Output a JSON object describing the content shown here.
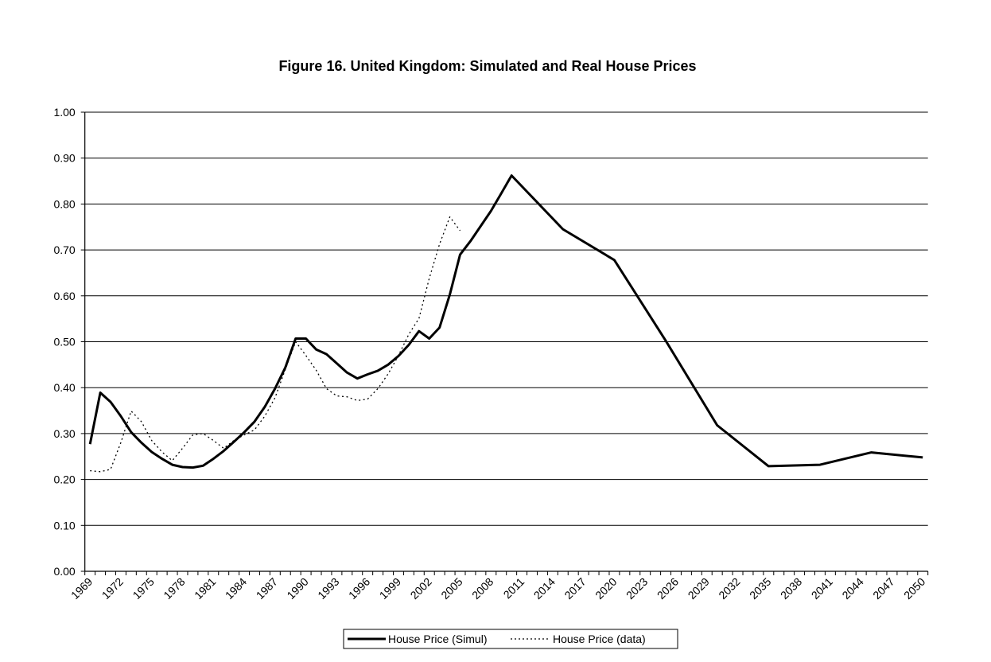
{
  "chart_data": {
    "type": "line",
    "title": "Figure 16.  United Kingdom:  Simulated and Real House Prices",
    "xlabel": "",
    "ylabel": "",
    "ylim": [
      0,
      1.0
    ],
    "yticks": [
      "0.00",
      "0.10",
      "0.20",
      "0.30",
      "0.40",
      "0.50",
      "0.60",
      "0.70",
      "0.80",
      "0.90",
      "1.00"
    ],
    "x_range": [
      1969,
      2050
    ],
    "xtick_labels": [
      "1969",
      "1972",
      "1975",
      "1978",
      "1981",
      "1984",
      "1987",
      "1990",
      "1993",
      "1996",
      "1999",
      "2002",
      "2005",
      "2008",
      "2011",
      "2014",
      "2017",
      "2020",
      "2023",
      "2026",
      "2029",
      "2032",
      "2035",
      "2038",
      "2041",
      "2044",
      "2047",
      "2050"
    ],
    "grid": "horizontal",
    "legend_position": "bottom",
    "series": [
      {
        "name": "House Price (Simul)",
        "style": "solid",
        "color": "#000000",
        "points": [
          [
            1969,
            0.277
          ],
          [
            1970,
            0.389
          ],
          [
            1971,
            0.369
          ],
          [
            1972,
            0.338
          ],
          [
            1973,
            0.303
          ],
          [
            1974,
            0.28
          ],
          [
            1975,
            0.26
          ],
          [
            1976,
            0.245
          ],
          [
            1977,
            0.232
          ],
          [
            1978,
            0.227
          ],
          [
            1979,
            0.226
          ],
          [
            1980,
            0.23
          ],
          [
            1981,
            0.245
          ],
          [
            1982,
            0.262
          ],
          [
            1983,
            0.282
          ],
          [
            1984,
            0.303
          ],
          [
            1985,
            0.326
          ],
          [
            1986,
            0.358
          ],
          [
            1987,
            0.398
          ],
          [
            1988,
            0.444
          ],
          [
            1989,
            0.507
          ],
          [
            1990,
            0.507
          ],
          [
            1991,
            0.483
          ],
          [
            1992,
            0.473
          ],
          [
            1993,
            0.453
          ],
          [
            1994,
            0.433
          ],
          [
            1995,
            0.42
          ],
          [
            1996,
            0.429
          ],
          [
            1997,
            0.437
          ],
          [
            1998,
            0.45
          ],
          [
            1999,
            0.469
          ],
          [
            2000,
            0.493
          ],
          [
            2001,
            0.523
          ],
          [
            2002,
            0.507
          ],
          [
            2003,
            0.531
          ],
          [
            2004,
            0.603
          ],
          [
            2005,
            0.69
          ],
          [
            2006,
            0.719
          ],
          [
            2007,
            0.752
          ],
          [
            2008,
            0.785
          ],
          [
            2009,
            0.823
          ],
          [
            2010,
            0.862
          ],
          [
            2015,
            0.745
          ],
          [
            2020,
            0.678
          ],
          [
            2025,
            0.502
          ],
          [
            2030,
            0.318
          ],
          [
            2035,
            0.229
          ],
          [
            2040,
            0.232
          ],
          [
            2045,
            0.259
          ],
          [
            2050,
            0.248
          ]
        ]
      },
      {
        "name": "House Price (data)",
        "style": "dashed",
        "color": "#000000",
        "points": [
          [
            1969,
            0.219
          ],
          [
            1970,
            0.217
          ],
          [
            1971,
            0.222
          ],
          [
            1972,
            0.28
          ],
          [
            1973,
            0.349
          ],
          [
            1974,
            0.326
          ],
          [
            1975,
            0.285
          ],
          [
            1976,
            0.26
          ],
          [
            1977,
            0.241
          ],
          [
            1978,
            0.268
          ],
          [
            1979,
            0.297
          ],
          [
            1980,
            0.3
          ],
          [
            1981,
            0.285
          ],
          [
            1982,
            0.268
          ],
          [
            1983,
            0.285
          ],
          [
            1984,
            0.297
          ],
          [
            1985,
            0.308
          ],
          [
            1986,
            0.338
          ],
          [
            1987,
            0.378
          ],
          [
            1988,
            0.44
          ],
          [
            1989,
            0.5
          ],
          [
            1990,
            0.47
          ],
          [
            1991,
            0.438
          ],
          [
            1992,
            0.398
          ],
          [
            1993,
            0.382
          ],
          [
            1994,
            0.38
          ],
          [
            1995,
            0.372
          ],
          [
            1996,
            0.375
          ],
          [
            1997,
            0.398
          ],
          [
            1998,
            0.43
          ],
          [
            1999,
            0.47
          ],
          [
            2000,
            0.516
          ],
          [
            2001,
            0.551
          ],
          [
            2002,
            0.638
          ],
          [
            2003,
            0.713
          ],
          [
            2004,
            0.772
          ],
          [
            2005,
            0.742
          ]
        ]
      }
    ]
  }
}
